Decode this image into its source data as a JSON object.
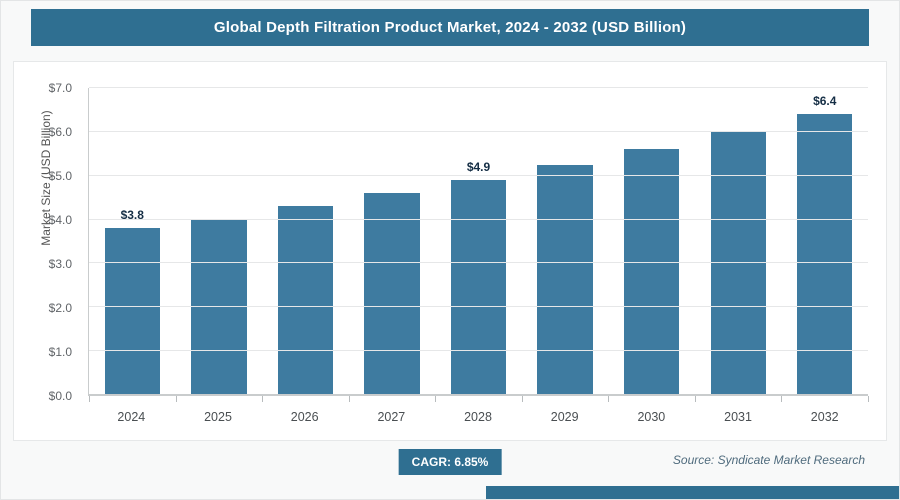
{
  "header": {
    "title": "Global Depth Filtration Product Market, 2024 - 2032 (USD Billion)"
  },
  "footer": {
    "cagr_label": "CAGR: 6.85%",
    "source": "Source: Syndicate Market Research"
  },
  "colors": {
    "accent": "#2f6f91",
    "bar": "#3e7ba0",
    "bar_value_text": "#152e45"
  },
  "chart_data": {
    "type": "bar",
    "title": "Global Depth Filtration Product Market, 2024 - 2032 (USD Billion)",
    "categories": [
      "2024",
      "2025",
      "2026",
      "2027",
      "2028",
      "2029",
      "2030",
      "2031",
      "2032"
    ],
    "values": [
      3.8,
      4.0,
      4.3,
      4.6,
      4.9,
      5.25,
      5.6,
      6.0,
      6.4
    ],
    "bar_labels": [
      "$3.8",
      "",
      "",
      "",
      "$4.9",
      "",
      "",
      "",
      "$6.4"
    ],
    "xlabel": "",
    "ylabel": "Market Size (USD Billion)",
    "ylim": [
      0,
      7
    ],
    "ytick_step": 1,
    "ytick_labels": [
      "$0.0",
      "$1.0",
      "$2.0",
      "$3.0",
      "$4.0",
      "$5.0",
      "$6.0",
      "$7.0"
    ],
    "grid": true,
    "legend": false,
    "annotations": [
      "CAGR: 6.85%",
      "Source: Syndicate Market Research"
    ]
  }
}
